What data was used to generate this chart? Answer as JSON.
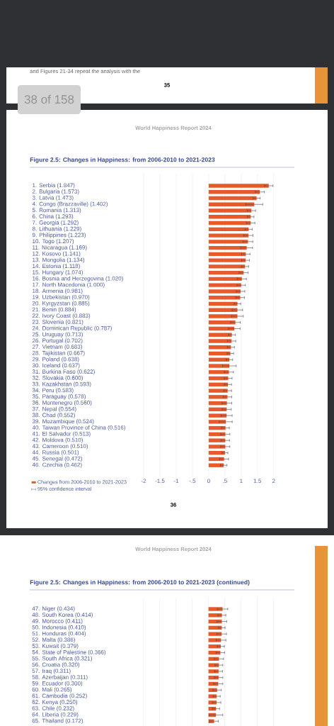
{
  "chart_data": [
    {
      "type": "bar",
      "orientation": "horizontal",
      "title": "Figure 2.5: Changes in Happiness: from 2006-2010 to 2021-2023",
      "annotations": [
        "World Happiness Report 2024",
        "95% confidence interval",
        "36",
        "and Figures 21-34 repeat the analysis with the",
        "35",
        "38 of 158"
      ],
      "categories": [
        "1. Serbia (1.847)",
        "2. Bulgaria (1.573)",
        "3. Latvia (1.473)",
        "4. Congo (Brazzaville) (1.402)",
        "5. Romania (1.313)",
        "6. China (1.293)",
        "7. Georgia (1.292)",
        "8. Lithuania (1.229)",
        "9. Philippines (1.223)",
        "10. Togo (1.207)",
        "11. Nicaragua (1.169)",
        "12. Kosovo (1.141)",
        "13. Mongolia (1.134)",
        "14. Estonia (1.118)",
        "15. Hungary (1.074)",
        "16. Bosnia and Herzegovina (1.020)",
        "17. North Macedonia (1.000)",
        "18. Armenia (0.981)",
        "19. Uzbekistan (0.970)",
        "20. Kyrgyzstan (0.885)",
        "21. Benin (0.884)",
        "22. Ivory Coast (0.883)",
        "23. Slovenia (0.821)",
        "24. Dominican Republic (0.787)",
        "25. Uruguay (0.713)",
        "26. Portugal (0.702)",
        "27. Vietnam (0.683)",
        "28. Tajikistan (0.667)",
        "29. Poland (0.638)",
        "30. Iceland (0.637)",
        "31. Burkina Faso (0.622)",
        "32. Slovakia (0.600)",
        "33. Kazakhstan (0.593)",
        "34. Peru (0.583)",
        "35. Paraguay (0.578)",
        "36. Montenegro (0.560)",
        "37. Nepal (0.554)",
        "38. Chad (0.552)",
        "39. Mozambique (0.524)",
        "40. Taiwan Province of China (0.516)",
        "41. El Salvador (0.513)",
        "42. Moldova (0.510)",
        "43. Cameroon (0.510)",
        "44. Russia (0.501)",
        "45. Senegal (0.472)",
        "46. Czechia (0.462)"
      ],
      "series": [
        {
          "name": "Changes from 2006-2010 to 2021-2023",
          "color": "#e8592b",
          "values": [
            1.847,
            1.573,
            1.473,
            1.402,
            1.313,
            1.293,
            1.292,
            1.229,
            1.223,
            1.207,
            1.169,
            1.141,
            1.134,
            1.118,
            1.074,
            1.02,
            1.0,
            0.981,
            0.97,
            0.885,
            0.884,
            0.883,
            0.821,
            0.787,
            0.713,
            0.702,
            0.683,
            0.667,
            0.638,
            0.637,
            0.622,
            0.6,
            0.593,
            0.583,
            0.578,
            0.56,
            0.554,
            0.552,
            0.524,
            0.516,
            0.513,
            0.51,
            0.51,
            0.501,
            0.472,
            0.462
          ],
          "errors": [
            0.13,
            0.14,
            0.11,
            0.26,
            0.13,
            0.1,
            0.13,
            0.11,
            0.14,
            0.15,
            0.18,
            0.13,
            0.12,
            0.11,
            0.14,
            0.14,
            0.13,
            0.13,
            0.13,
            0.1,
            0.16,
            0.18,
            0.15,
            0.18,
            0.11,
            0.13,
            0.11,
            0.1,
            0.1,
            0.21,
            0.14,
            0.12,
            0.11,
            0.12,
            0.13,
            0.15,
            0.14,
            0.17,
            0.2,
            0.12,
            0.14,
            0.13,
            0.14,
            0.09,
            0.14,
            0.1
          ]
        }
      ],
      "xlim": [
        -2,
        2
      ],
      "xticks": [
        -2,
        -1.5,
        -1,
        {
          "value": -0.5,
          "label": "-.5"
        },
        0,
        {
          "value": 0.5,
          "label": ".5"
        },
        1,
        1.5,
        2
      ],
      "grid": "x",
      "legend": "bottom left"
    },
    {
      "type": "bar",
      "orientation": "horizontal",
      "title": "Figure 2.5: Changes in Happiness: from 2006-2010 to 2021-2023 (continued)",
      "annotations": [
        "World Happiness Report 2024"
      ],
      "categories": [
        "47. Niger (0.434)",
        "48. South Korea (0.414)",
        "49. Morocco (0.411)",
        "50. Indonesia (0.410)",
        "51. Honduras (0.404)",
        "52. Malta (0.386)",
        "53. Kuwait (0.379)",
        "54. State of Palestine (0.366)",
        "55. South Africa (0.321)",
        "56. Croatia (0.320)",
        "57. Iraq (0.311)",
        "58. Azerbaijan (0.311)",
        "59. Ecuador (0.300)",
        "60. Mali (0.265)",
        "61. Cambodia (0.252)",
        "62. Kenya (0.250)",
        "63. Chile (0.232)",
        "64. Liberia (0.229)",
        "65. Thailand (0.172)"
      ],
      "series": [
        {
          "color": "#e8592b",
          "values": [
            0.434,
            0.414,
            0.411,
            0.41,
            0.404,
            0.386,
            0.379,
            0.366,
            0.321,
            0.32,
            0.311,
            0.311,
            0.3,
            0.265,
            0.252,
            0.25,
            0.232,
            0.229,
            0.172
          ],
          "errors": [
            0.16,
            0.12,
            0.15,
            0.1,
            0.15,
            0.15,
            0.11,
            0.13,
            0.14,
            0.12,
            0.12,
            0.13,
            0.14,
            0.13,
            0.11,
            0.13,
            0.11,
            0.21,
            0.13
          ]
        }
      ],
      "xlim": [
        -2,
        2
      ],
      "xticks": [
        -2,
        -1.5,
        -1,
        -0.5,
        0,
        0.5,
        1,
        1.5,
        2
      ],
      "tick_labels": "y",
      "grid": "x"
    }
  ]
}
